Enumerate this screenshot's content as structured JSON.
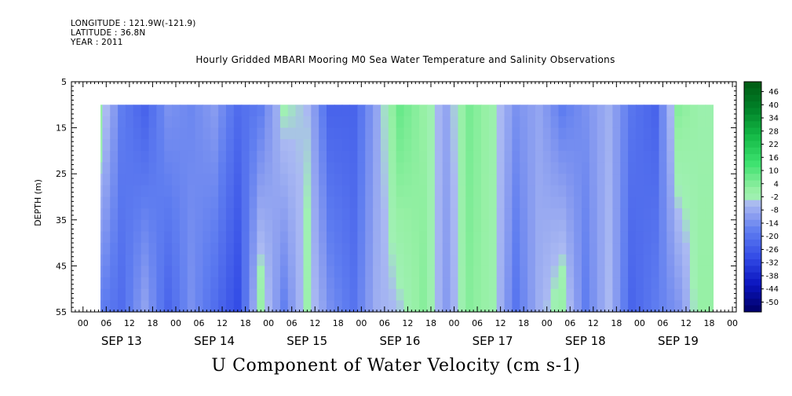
{
  "meta": {
    "longitude": "LONGITUDE : 121.9W(-121.9)",
    "latitude": "LATITUDE : 36.8N",
    "year": "YEAR : 2011"
  },
  "plot_title": "Hourly Gridded MBARI Mooring M0 Sea Water Temperature and Salinity Observations",
  "footer_title": "U Component of Water Velocity (cm s-1)",
  "chart_data": {
    "type": "heatmap",
    "title": "Hourly Gridded MBARI Mooring M0 Sea Water Temperature and Salinity Observations",
    "ylabel": "DEPTH (m)",
    "xlabel": "U Component of Water Velocity (cm s-1)",
    "y_reversed": true,
    "ylim": [
      5,
      55
    ],
    "y_ticks": [
      5,
      15,
      25,
      35,
      45,
      55
    ],
    "data_depth_range": [
      10,
      55
    ],
    "x_hour_ticks": [
      "00",
      "06",
      "12",
      "18",
      "00",
      "06",
      "12",
      "18",
      "00",
      "06",
      "12",
      "18",
      "00",
      "06",
      "12",
      "18",
      "00",
      "06",
      "12",
      "18",
      "00",
      "06",
      "12",
      "18",
      "00",
      "06",
      "12",
      "18",
      "00"
    ],
    "x_day_labels": [
      "SEP 13",
      "SEP 14",
      "SEP 15",
      "SEP 16",
      "SEP 17",
      "SEP 18",
      "SEP 19"
    ],
    "data_time_range_hours": [
      3,
      162
    ],
    "colorbar": {
      "levels": [
        "46",
        "40",
        "34",
        "28",
        "22",
        "16",
        "10",
        "4",
        "-2",
        "-8",
        "-14",
        "-20",
        "-26",
        "-32",
        "-38",
        "-44",
        "-50"
      ],
      "min": -50,
      "max": 52,
      "step": 6
    },
    "u_profile_by_hour": {
      "hours": [
        3,
        9,
        15,
        21,
        27,
        33,
        39,
        45,
        51,
        57,
        63,
        69,
        75,
        81,
        87,
        93,
        99,
        105,
        111,
        117,
        123,
        129,
        135,
        141,
        147,
        153,
        159
      ],
      "surface_cm_s": [
        4,
        -14,
        -20,
        -10,
        -12,
        -8,
        -18,
        -14,
        0,
        -2,
        -20,
        -20,
        -6,
        10,
        4,
        -6,
        8,
        2,
        -10,
        -6,
        -14,
        -10,
        -4,
        -16,
        -20,
        6,
        2
      ],
      "bottom_cm_s": [
        -14,
        -18,
        -6,
        -20,
        -10,
        -18,
        -26,
        4,
        -14,
        2,
        -10,
        -16,
        -4,
        -2,
        6,
        -8,
        6,
        2,
        -16,
        -4,
        4,
        -14,
        -2,
        -20,
        -14,
        -10,
        4
      ]
    }
  }
}
